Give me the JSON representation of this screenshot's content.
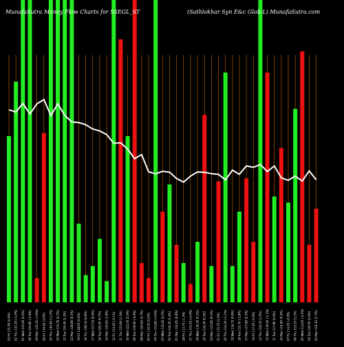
{
  "header": {
    "left": "MunafaSutra  Money Flow  Charts for SSEGL_ST",
    "right": "(Sathlokhar Syn  E&c Glob L) MunafaSutra.com"
  },
  "colors": {
    "background": "#000000",
    "gridline": "#b35900",
    "up": "#22ee22",
    "down": "#ee1111",
    "price_line": "#ffffff",
    "text": "#ffffff"
  },
  "chart_data": {
    "type": "bar",
    "title": "",
    "xlabel": "",
    "ylabel": "",
    "ylim": [
      0,
      100
    ],
    "categories": [
      "03 Fri 131.85 (0.4%)",
      "02 Thu 131.30 (-1.6%)",
      "01 Wed 133.45 (2.0%)",
      "30 Tue 130.80 (-1.9%)",
      "29 Mon 133.35 (-0.8%)",
      "26 Fri 134.40 (3.0%)",
      "25 Thu 130.45 (-2.2%)",
      "24 Wed 133.35 (2.2%)",
      "23 Tue 130.45 (1.3%)",
      "22 Mon 128.80 (0.1%)",
      "19 Fri 128.65 (0.4%)",
      "18 Thu 128.10 (0.8%)",
      "17 Wed 127.05 (0.4%)",
      "16 Tue 126.55 (0.7%)",
      "15 Mon 125.65 (1.8%)",
      "12 Fri 123.45 (-0.1%)",
      "11 Thu 123.60 (1.3%)",
      "10 Wed 122.00 (2.0%)",
      "09 Tue 119.60 (-0.9%)",
      "08 Mon 120.65 (3.7%)",
      "05 Fri 116.35 (0.5%)",
      "04 Thu 115.80 (-0.6%)",
      "03 Wed 116.45 (0.2%)",
      "02 Tue 116.25 (1.4%)",
      "01 Mon 114.65 (0.8%)",
      "28 Fri 113.75 (-1.3%)",
      "27 Thu 115.25 (-0.9%)",
      "26 Wed 116.30 (0.1%)",
      "25 Tue 116.20 (0.3%)",
      "24 Mon 115.85 (0.1%)",
      "21 Fri 115.70 (1.2%)",
      "20 Thu 114.30 (-2.1%)",
      "19 Wed 116.75 (0.9%)",
      "18 Tue 115.70 (-1.8%)",
      "17 Mon 117.80 (0.3%)",
      "14 Fri 117.45 (-0.6%)",
      "13 Thu 118.15 (1.5%)",
      "12 Wed 116.40 (-1.2%)",
      "11 Tue 117.80 (2.6%)",
      "10 Mon 114.80 (0.5%)",
      "07 Fri 114.20 (-0.9%)",
      "06 Thu 115.25 (1.1%)",
      "05 Wed 114.00 (-2.2%)",
      "04 Tue 116.55 (2.0%)",
      "03 Mon 114.30 (1.7%)"
    ],
    "series": [
      {
        "values": [
          55,
          73,
          100,
          100,
          8,
          56,
          100,
          100,
          100,
          100,
          26,
          9,
          12,
          21,
          7,
          100,
          87,
          55,
          100,
          13,
          8,
          100,
          30,
          39,
          19,
          13,
          6,
          20,
          62,
          12,
          40,
          76,
          12,
          30,
          41,
          20,
          100,
          76,
          35,
          51,
          33,
          64,
          83,
          19,
          31
        ]
      }
    ],
    "directions": [
      "up",
      "up",
      "up",
      "up",
      "down",
      "down",
      "up",
      "up",
      "up",
      "up",
      "up",
      "up",
      "up",
      "up",
      "up",
      "up",
      "down",
      "up",
      "down",
      "down",
      "down",
      "up",
      "down",
      "up",
      "down",
      "up",
      "down",
      "up",
      "down",
      "up",
      "down",
      "up",
      "up",
      "up",
      "down",
      "down",
      "up",
      "down",
      "up",
      "down",
      "up",
      "up",
      "down",
      "down",
      "down"
    ],
    "price": [
      131.85,
      131.3,
      133.45,
      130.8,
      133.35,
      134.4,
      130.45,
      133.35,
      130.45,
      128.8,
      128.65,
      128.1,
      127.05,
      126.55,
      125.65,
      123.45,
      123.6,
      122.0,
      119.6,
      120.65,
      116.35,
      115.8,
      116.45,
      116.25,
      114.65,
      113.75,
      115.25,
      116.3,
      116.2,
      115.85,
      115.7,
      114.3,
      116.75,
      115.7,
      117.8,
      117.45,
      118.15,
      116.4,
      117.8,
      114.8,
      114.2,
      115.25,
      114.0,
      116.55,
      114.3
    ]
  }
}
